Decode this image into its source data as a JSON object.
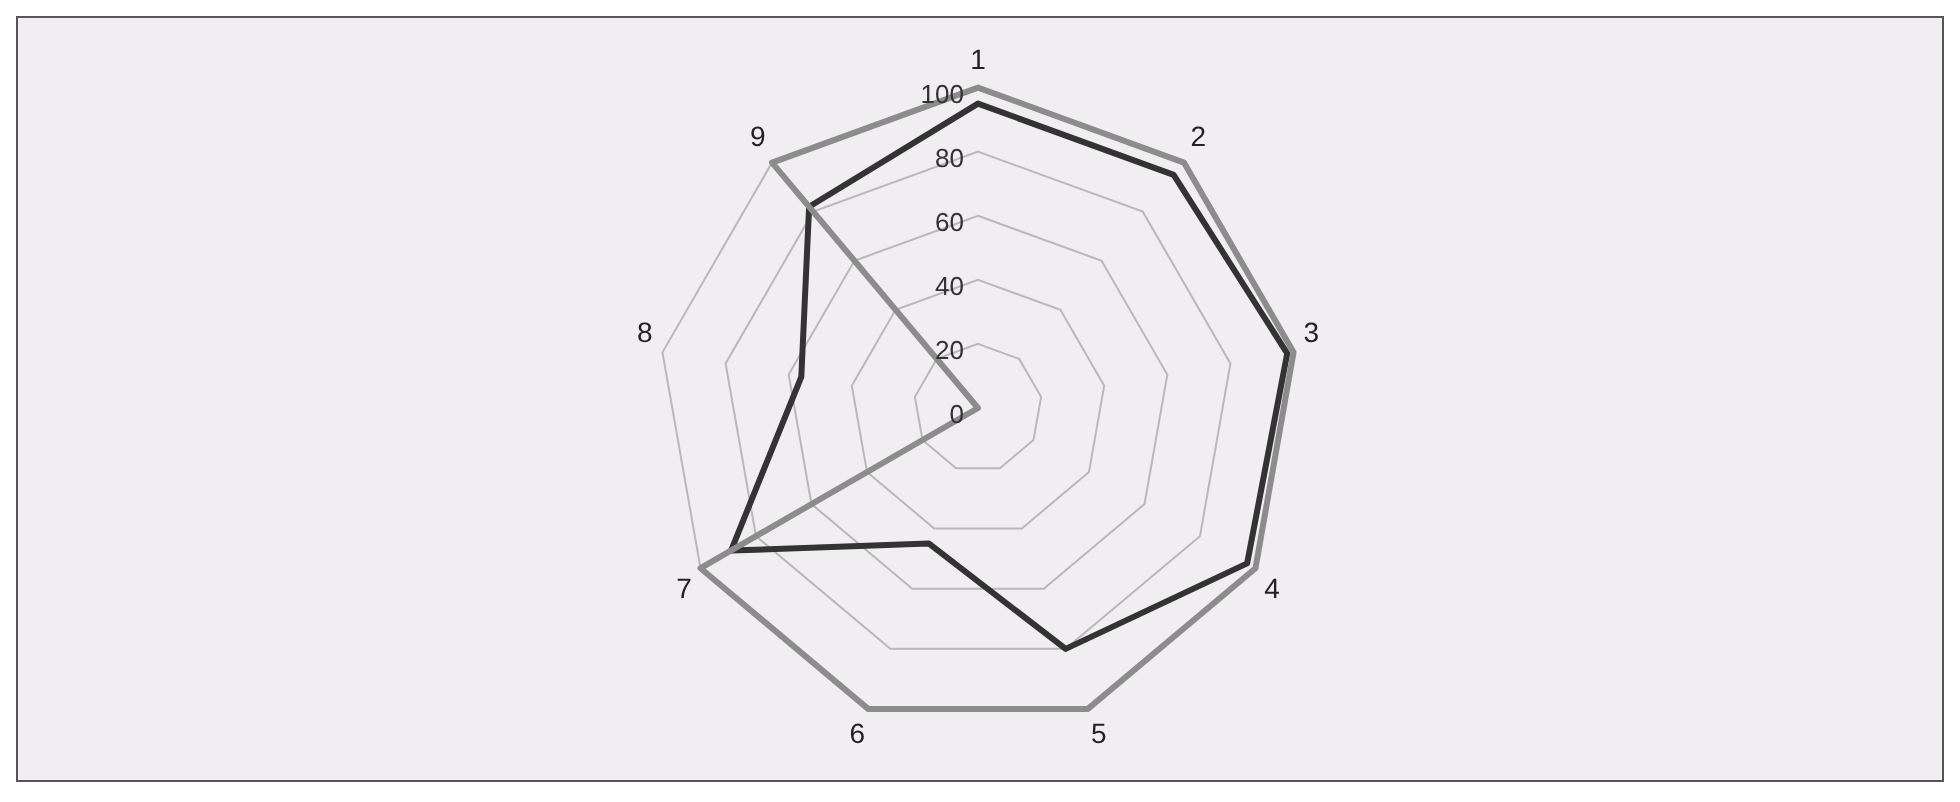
{
  "chart_data": {
    "type": "radar",
    "categories": [
      "1",
      "2",
      "3",
      "4",
      "5",
      "6",
      "7",
      "8",
      "9"
    ],
    "series": [
      {
        "color": "#8c8c8c",
        "values": [
          100,
          100,
          100,
          100,
          100,
          100,
          100,
          0,
          100
        ]
      },
      {
        "color": "#333333",
        "values": [
          95,
          95,
          98,
          97,
          80,
          45,
          89,
          56,
          82
        ]
      }
    ],
    "ylim": [
      0,
      100
    ],
    "yticks": [
      0,
      20,
      40,
      60,
      80,
      100
    ],
    "grid": true,
    "legend": false,
    "marker": "none"
  }
}
